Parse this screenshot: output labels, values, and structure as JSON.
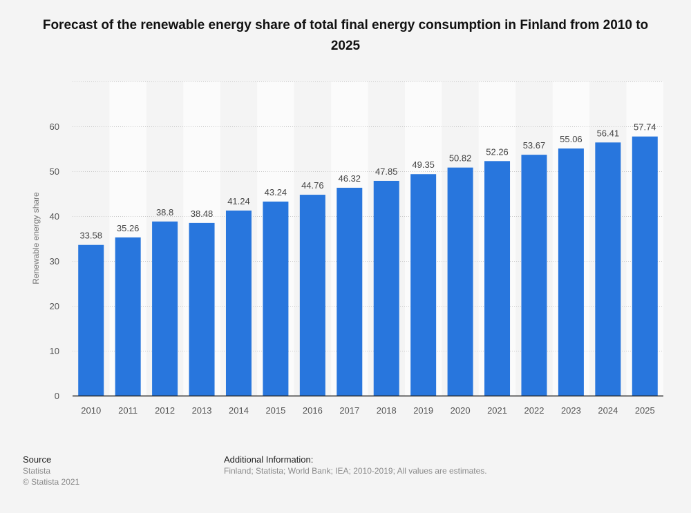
{
  "chart_data": {
    "type": "bar",
    "title": "Forecast of the renewable energy share of total final energy consumption in Finland from 2010 to 2025",
    "xlabel": "",
    "ylabel": "Renewable energy share",
    "ylim": [
      0,
      70
    ],
    "yticks": [
      0,
      10,
      20,
      30,
      40,
      50,
      60
    ],
    "grid": true,
    "categories": [
      "2010",
      "2011",
      "2012",
      "2013",
      "2014",
      "2015",
      "2016",
      "2017",
      "2018",
      "2019",
      "2020",
      "2021",
      "2022",
      "2023",
      "2024",
      "2025"
    ],
    "values": [
      33.58,
      35.26,
      38.8,
      38.48,
      41.24,
      43.24,
      44.76,
      46.32,
      47.85,
      49.35,
      50.82,
      52.26,
      53.67,
      55.06,
      56.41,
      57.74
    ],
    "value_labels": [
      "33.58",
      "35.26",
      "38.8",
      "38.48",
      "41.24",
      "43.24",
      "44.76",
      "46.32",
      "47.85",
      "49.35",
      "50.82",
      "52.26",
      "53.67",
      "55.06",
      "56.41",
      "57.74"
    ],
    "bar_color": "#2876dd"
  },
  "footer": {
    "source_heading": "Source",
    "source": "Statista",
    "copyright": "© Statista 2021",
    "info_heading": "Additional Information:",
    "info": "Finland; Statista; World Bank; IEA; 2010-2019; All values are estimates."
  }
}
